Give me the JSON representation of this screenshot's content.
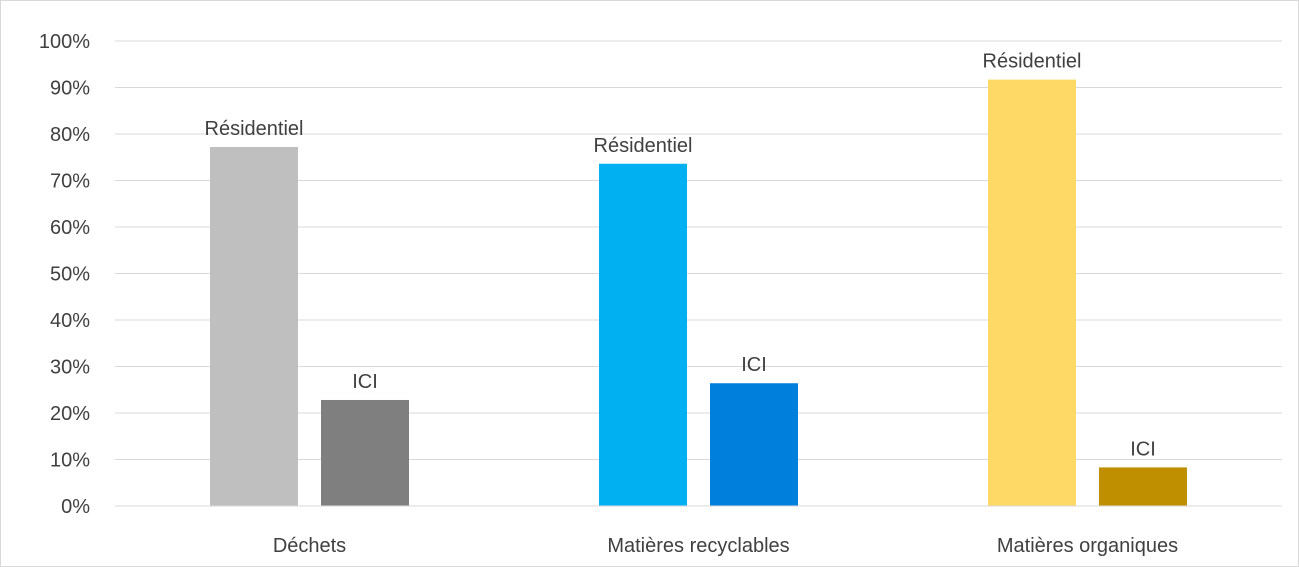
{
  "chart_data": {
    "type": "bar",
    "title": "",
    "xlabel": "",
    "ylabel": "",
    "ylim": [
      0,
      100
    ],
    "yticks": [
      0,
      10,
      20,
      30,
      40,
      50,
      60,
      70,
      80,
      90,
      100
    ],
    "ytick_labels": [
      "0%",
      "10%",
      "20%",
      "30%",
      "40%",
      "50%",
      "60%",
      "70%",
      "80%",
      "90%",
      "100%"
    ],
    "grid": true,
    "legend": "none",
    "categories": [
      "Déchets",
      "Matières recyclables",
      "Matières organiques"
    ],
    "groups": [
      {
        "category": "Déchets",
        "bars": [
          {
            "label": "Résidentiel",
            "value": 77.2,
            "color": "#bfbfbf"
          },
          {
            "label": "ICI",
            "value": 22.8,
            "color": "#7f7f7f"
          }
        ]
      },
      {
        "category": "Matières recyclables",
        "bars": [
          {
            "label": "Résidentiel",
            "value": 73.6,
            "color": "#00b0f0"
          },
          {
            "label": "ICI",
            "value": 26.4,
            "color": "#0080dc"
          }
        ]
      },
      {
        "category": "Matières organiques",
        "bars": [
          {
            "label": "Résidentiel",
            "value": 91.7,
            "color": "#ffd966"
          },
          {
            "label": "ICI",
            "value": 8.3,
            "color": "#bf8f00"
          }
        ]
      }
    ],
    "colors": {
      "gridline": "#d9d9d9",
      "axis": "#d9d9d9",
      "text": "#404040"
    }
  }
}
